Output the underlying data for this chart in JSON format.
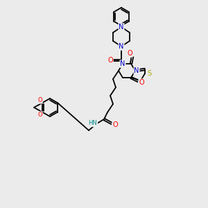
{
  "bg_color": "#ebebeb",
  "atom_colors": {
    "C": "#000000",
    "N": "#0000cc",
    "O": "#ff0000",
    "S": "#aaaa00",
    "H": "#008888"
  },
  "figsize": [
    3.0,
    3.0
  ],
  "dpi": 100
}
